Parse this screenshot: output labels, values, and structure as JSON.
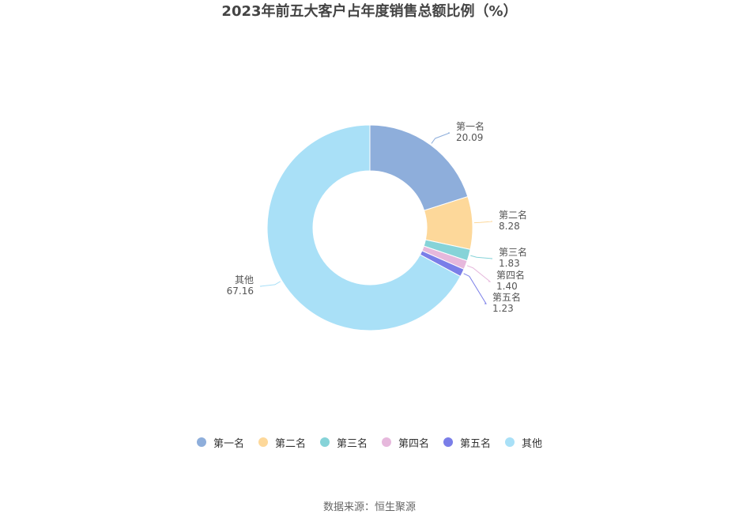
{
  "title": "2023年前五大客户占年度销售总额比例（%）",
  "source": "数据来源：恒生聚源",
  "chart_data": {
    "type": "pie",
    "variant": "donut",
    "title": "2023年前五大客户占年度销售总额比例（%）",
    "categories": [
      "第一名",
      "第二名",
      "第三名",
      "第四名",
      "第五名",
      "其他"
    ],
    "values": [
      20.09,
      8.28,
      1.83,
      1.4,
      1.23,
      67.16
    ],
    "value_labels": [
      "20.09",
      "8.28",
      "1.83",
      "1.40",
      "1.23",
      "67.16"
    ],
    "colors": [
      "#8eaedb",
      "#fdd89a",
      "#86d3d8",
      "#e6b8dc",
      "#7a7ee8",
      "#a9e0f7"
    ],
    "legend_position": "bottom"
  }
}
